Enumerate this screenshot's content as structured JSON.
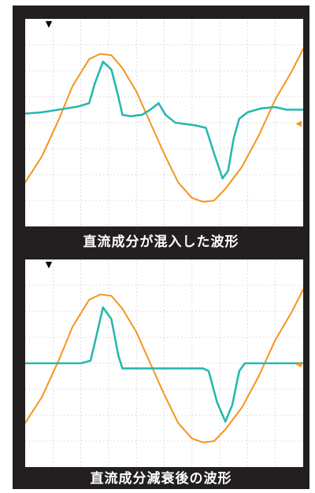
{
  "chart_data": [
    {
      "type": "line",
      "caption": "直流成分が混入した波形",
      "grid": true,
      "grid_divisions": {
        "x": 10,
        "y": 8
      },
      "xlim": [
        0,
        1000
      ],
      "ylim": [
        -4,
        4
      ],
      "series": [
        {
          "color": "#f7941d",
          "points": [
            [
              0,
              -2.3
            ],
            [
              60,
              -1.3
            ],
            [
              120,
              0.1
            ],
            [
              170,
              1.4
            ],
            [
              230,
              2.45
            ],
            [
              270,
              2.65
            ],
            [
              310,
              2.6
            ],
            [
              350,
              2.1
            ],
            [
              400,
              1.2
            ],
            [
              450,
              0
            ],
            [
              500,
              -1.2
            ],
            [
              550,
              -2.3
            ],
            [
              600,
              -2.9
            ],
            [
              640,
              -3.05
            ],
            [
              680,
              -3.0
            ],
            [
              720,
              -2.55
            ],
            [
              780,
              -1.7
            ],
            [
              840,
              -0.5
            ],
            [
              900,
              0.9
            ],
            [
              960,
              2.0
            ],
            [
              1000,
              2.85
            ]
          ]
        },
        {
          "color": "#2ab7b1",
          "points": [
            [
              0,
              0.35
            ],
            [
              60,
              0.4
            ],
            [
              120,
              0.5
            ],
            [
              190,
              0.62
            ],
            [
              230,
              0.75
            ],
            [
              250,
              1.5
            ],
            [
              280,
              2.35
            ],
            [
              310,
              2.05
            ],
            [
              335,
              1.0
            ],
            [
              350,
              0.3
            ],
            [
              380,
              0.25
            ],
            [
              420,
              0.3
            ],
            [
              450,
              0.5
            ],
            [
              480,
              0.75
            ],
            [
              505,
              0.3
            ],
            [
              540,
              0.0
            ],
            [
              610,
              -0.1
            ],
            [
              650,
              -0.2
            ],
            [
              680,
              -1.2
            ],
            [
              710,
              -2.15
            ],
            [
              730,
              -1.85
            ],
            [
              750,
              -0.6
            ],
            [
              770,
              0.15
            ],
            [
              800,
              0.4
            ],
            [
              850,
              0.55
            ],
            [
              900,
              0.6
            ],
            [
              940,
              0.5
            ],
            [
              1000,
              0.5
            ]
          ]
        }
      ],
      "markers": {
        "trigger": "▼",
        "level": "◀"
      }
    },
    {
      "type": "line",
      "caption": "直流成分減衰後の波形",
      "grid": true,
      "grid_divisions": {
        "x": 10,
        "y": 8
      },
      "xlim": [
        0,
        1000
      ],
      "ylim": [
        -4,
        4
      ],
      "series": [
        {
          "color": "#f7941d",
          "points": [
            [
              0,
              -2.3
            ],
            [
              60,
              -1.3
            ],
            [
              120,
              0.1
            ],
            [
              170,
              1.4
            ],
            [
              230,
              2.45
            ],
            [
              270,
              2.65
            ],
            [
              310,
              2.6
            ],
            [
              350,
              2.1
            ],
            [
              400,
              1.2
            ],
            [
              450,
              0
            ],
            [
              500,
              -1.2
            ],
            [
              550,
              -2.3
            ],
            [
              600,
              -2.9
            ],
            [
              640,
              -3.05
            ],
            [
              680,
              -3.0
            ],
            [
              720,
              -2.55
            ],
            [
              780,
              -1.7
            ],
            [
              840,
              -0.5
            ],
            [
              900,
              0.9
            ],
            [
              960,
              2.0
            ],
            [
              1000,
              2.85
            ]
          ]
        },
        {
          "color": "#2ab7b1",
          "points": [
            [
              0,
              0.0
            ],
            [
              100,
              0.0
            ],
            [
              200,
              0.0
            ],
            [
              235,
              0.1
            ],
            [
              255,
              1.0
            ],
            [
              280,
              2.15
            ],
            [
              310,
              1.7
            ],
            [
              335,
              0.3
            ],
            [
              350,
              -0.2
            ],
            [
              420,
              -0.2
            ],
            [
              500,
              -0.2
            ],
            [
              560,
              -0.2
            ],
            [
              640,
              -0.2
            ],
            [
              660,
              -0.3
            ],
            [
              690,
              -1.5
            ],
            [
              720,
              -2.25
            ],
            [
              745,
              -1.6
            ],
            [
              770,
              -0.3
            ],
            [
              790,
              0.0
            ],
            [
              900,
              0.0
            ],
            [
              1000,
              0.0
            ]
          ]
        }
      ],
      "markers": {
        "trigger": "▼",
        "level": "◀"
      }
    }
  ]
}
